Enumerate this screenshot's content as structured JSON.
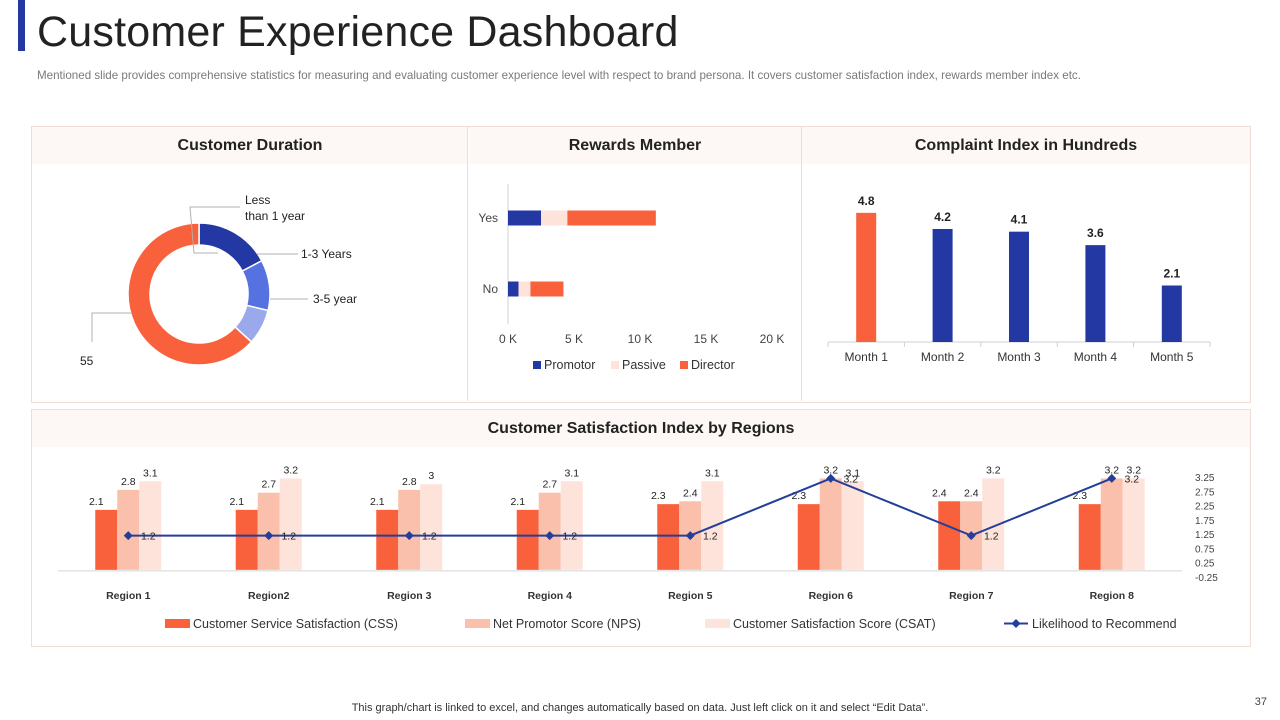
{
  "header": {
    "title": "Customer Experience Dashboard",
    "subtitle": "Mentioned slide provides  comprehensive  statistics for measuring and evaluating  customer experience  level  with respect to brand  persona.  It covers  customer satisfaction index, rewards  member index etc."
  },
  "colors": {
    "accent": "#2438a4",
    "orange": "#f8613b",
    "navy": "#2438a4",
    "peach": "#fac0ac",
    "light_pink": "#fde3da",
    "line": "#243f99"
  },
  "chart_data": [
    {
      "type": "pie",
      "title": "Customer Duration",
      "categories": [
        "Less than 1 year",
        "1-3 Years",
        "3-5 year",
        ""
      ],
      "label_lines": [
        [
          "Less",
          "than 1 year"
        ],
        [
          "1-3 Years"
        ],
        [
          "3-5 year"
        ],
        [
          "55"
        ]
      ],
      "values": [
        15,
        10,
        7,
        55
      ],
      "colors": [
        "#2438a4",
        "#5672e0",
        "#9aa9ec",
        "#f8613b"
      ]
    },
    {
      "type": "bar",
      "orientation": "horizontal",
      "stacked": true,
      "title": "Rewards Member",
      "categories": [
        "Yes",
        "No"
      ],
      "series": [
        {
          "name": "Promotor",
          "values": [
            2500,
            800
          ],
          "color": "#2438a4"
        },
        {
          "name": "Passive",
          "values": [
            2000,
            900
          ],
          "color": "#fde3da"
        },
        {
          "name": "Director",
          "values": [
            6700,
            2500
          ],
          "color": "#f8613b"
        }
      ],
      "xlim": [
        0,
        20000
      ],
      "xticks": [
        "0 K",
        "5 K",
        "10 K",
        "15 K",
        "20 K"
      ]
    },
    {
      "type": "bar",
      "title": "Complaint Index in Hundreds",
      "categories": [
        "Month 1",
        "Month 2",
        "Month 3",
        "Month 4",
        "Month 5"
      ],
      "values": [
        4.8,
        4.2,
        4.1,
        3.6,
        2.1
      ],
      "value_labels": [
        "4.8",
        "4.2",
        "4.1",
        "3.6",
        "2.1"
      ],
      "colors": [
        "#f8613b",
        "#2438a4",
        "#2438a4",
        "#2438a4",
        "#2438a4"
      ],
      "ylim": [
        0,
        5.5
      ]
    },
    {
      "type": "bar",
      "title": "Customer Satisfaction  Index by Regions",
      "categories": [
        "Region 1",
        "Region2",
        "Region 3",
        "Region 4",
        "Region 5",
        "Region 6",
        "Region 7",
        "Region 8"
      ],
      "series": [
        {
          "name": "Customer Service Satisfaction (CSS)",
          "kind": "bar",
          "color": "#f8613b",
          "values": [
            2.1,
            2.1,
            2.1,
            2.1,
            2.3,
            2.3,
            2.4,
            2.3
          ],
          "labels": [
            "2.1",
            "2.1",
            "2.1",
            "2.1",
            "2.3",
            "2.3",
            "2.4",
            "2.3"
          ]
        },
        {
          "name": "Net Promotor Score (NPS)",
          "kind": "bar",
          "color": "#fac0ac",
          "values": [
            2.8,
            2.7,
            2.8,
            2.7,
            2.4,
            3.2,
            2.4,
            3.2
          ],
          "labels": [
            "2.8",
            "2.7",
            "2.8",
            "2.7",
            "2.4",
            "3.2",
            "2.4",
            "3.2"
          ]
        },
        {
          "name": "Customer Satisfaction Score (CSAT)",
          "kind": "bar",
          "color": "#fde3da",
          "values": [
            3.1,
            3.2,
            3.0,
            3.1,
            3.1,
            3.1,
            3.2,
            3.2
          ],
          "labels": [
            "3.1",
            "3.2",
            "3",
            "3.1",
            "3.1",
            "3.1",
            "3.2",
            "3.2"
          ]
        },
        {
          "name": "Likelihood to Recommend",
          "kind": "line",
          "color": "#243f99",
          "values": [
            1.2,
            1.2,
            1.2,
            1.2,
            1.2,
            3.2,
            1.2,
            3.2
          ],
          "labels": [
            "1.2",
            "1.2",
            "1.2",
            "1.2",
            "1.2",
            "3.2",
            "1.2",
            "3.2"
          ]
        }
      ],
      "ylim": [
        -0.25,
        3.25
      ],
      "y2ticks": [
        "3.25",
        "2.75",
        "2.25",
        "1.75",
        "1.25",
        "0.75",
        "0.25",
        "-0.25"
      ],
      "y2tick_values": [
        3.25,
        2.75,
        2.25,
        1.75,
        1.25,
        0.75,
        0.25,
        -0.25
      ],
      "legend": "bottom"
    }
  ],
  "footer": {
    "note": "This graph/chart is linked to excel,  and changes automatically based on data. Just left click on it and select “Edit Data”.",
    "page_number": "37"
  }
}
